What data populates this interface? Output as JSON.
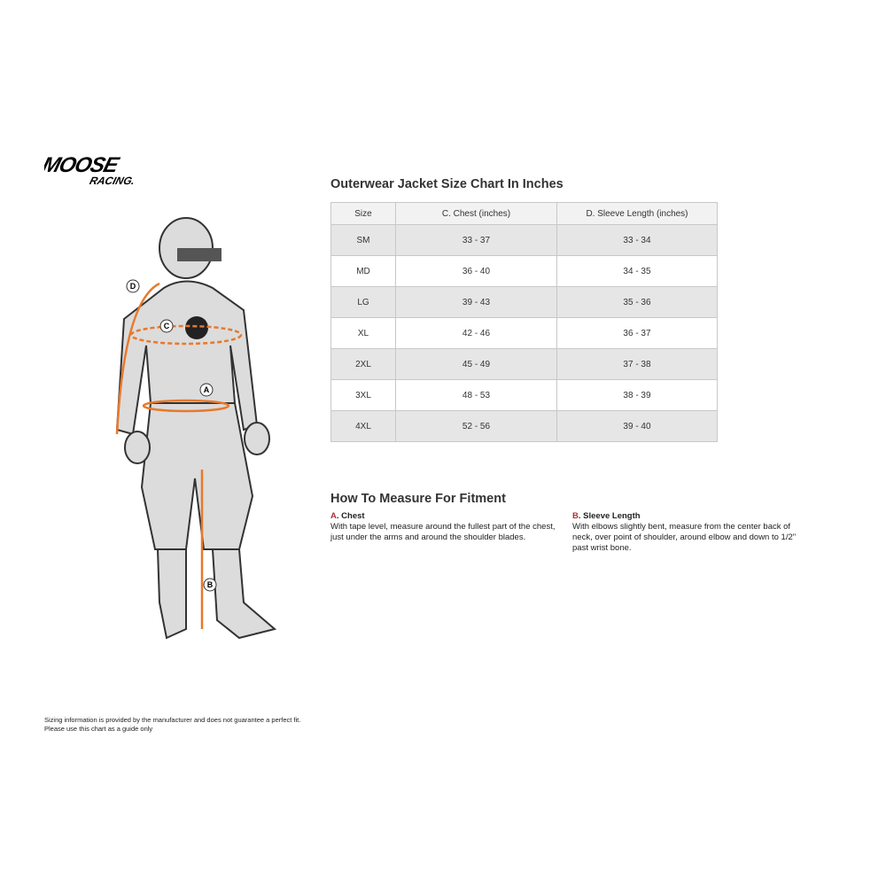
{
  "logo": {
    "text": "MOOSE RACING"
  },
  "chart_title": "Outerwear Jacket Size Chart In Inches",
  "table": {
    "headers": [
      "Size",
      "C. Chest (inches)",
      "D. Sleeve Length (inches)"
    ],
    "rows": [
      [
        "SM",
        "33 - 37",
        "33 - 34"
      ],
      [
        "MD",
        "36 - 40",
        "34 - 35"
      ],
      [
        "LG",
        "39 - 43",
        "35 - 36"
      ],
      [
        "XL",
        "42 - 46",
        "36 - 37"
      ],
      [
        "2XL",
        "45 - 49",
        "37 - 38"
      ],
      [
        "3XL",
        "48 - 53",
        "38 - 39"
      ],
      [
        "4XL",
        "52 - 56",
        "39 - 40"
      ]
    ]
  },
  "howto": {
    "title": "How To Measure For Fitment",
    "items": [
      {
        "letter": "A",
        "sep": ".",
        "label": "Chest",
        "text": "With tape level, measure around the fullest part of the chest, just under the arms and around the shoulder blades."
      },
      {
        "letter": "B",
        "sep": ".",
        "label": "Sleeve Length",
        "text": "With elbows slightly bent, measure from the center back of neck, over point of shoulder, around elbow and down to 1/2\" past wrist bone."
      }
    ]
  },
  "figure_markers": [
    "A",
    "B",
    "C",
    "D"
  ],
  "disclaimer": [
    "Sizing information is provided by the manufacturer and does not guarantee a perfect fit.",
    "Please use this chart as a guide only"
  ],
  "colors": {
    "accent": "#e8792b",
    "letter": "#b0303a",
    "row_shade": "#e6e6e6"
  }
}
